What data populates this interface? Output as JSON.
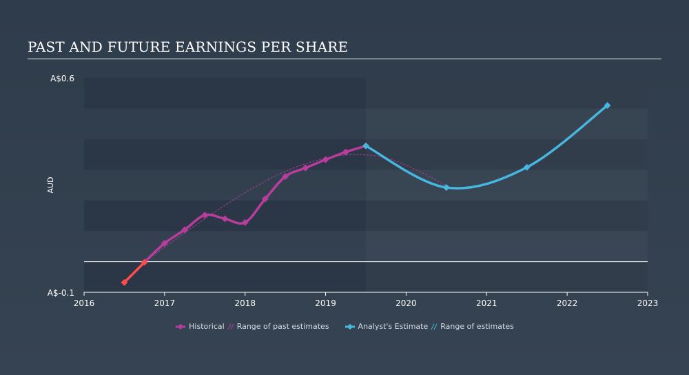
{
  "title": "PAST AND FUTURE EARNINGS PER SHARE",
  "colors": {
    "background": "#333f4e",
    "band": "#2b3746",
    "historical": "#b93d9d",
    "past_estimate_range": "#b93d9d",
    "negative_segment": "#ff4d4d",
    "analyst_estimate": "#48b7e0",
    "axis_text": "#ffffff"
  },
  "legend": {
    "historical": "Historical",
    "past_range": "Range of past estimates",
    "analyst": "Analyst's Estimate",
    "future_range": "Range of estimates"
  },
  "chart_data": {
    "type": "line",
    "ylabel": "AUD",
    "y_tick_labels": [
      "A$0.6",
      "A$-0.1"
    ],
    "y_ticks": [
      0.6,
      -0.1
    ],
    "ylim": [
      -0.1,
      0.6
    ],
    "xlim": [
      2016,
      2023
    ],
    "x_ticks": [
      "2016",
      "2017",
      "2018",
      "2019",
      "2020",
      "2021",
      "2022",
      "2023"
    ],
    "zero_line": 0,
    "series": [
      {
        "name": "Historical",
        "points": [
          [
            2016.5,
            -0.068
          ],
          [
            2016.75,
            -0.002
          ],
          [
            2017.0,
            0.06
          ],
          [
            2017.25,
            0.104
          ],
          [
            2017.5,
            0.152
          ],
          [
            2017.75,
            0.14
          ],
          [
            2018.0,
            0.128
          ],
          [
            2018.25,
            0.205
          ],
          [
            2018.5,
            0.278
          ],
          [
            2018.75,
            0.306
          ],
          [
            2019.0,
            0.333
          ],
          [
            2019.25,
            0.358
          ],
          [
            2019.5,
            0.378
          ]
        ]
      },
      {
        "name": "Range of past estimates",
        "points": [
          [
            2016.75,
            0.0
          ],
          [
            2017.5,
            0.14
          ],
          [
            2018.0,
            0.225
          ],
          [
            2018.5,
            0.295
          ],
          [
            2019.0,
            0.338
          ],
          [
            2019.4,
            0.35
          ],
          [
            2019.8,
            0.335
          ],
          [
            2020.2,
            0.29
          ],
          [
            2020.5,
            0.248
          ]
        ]
      },
      {
        "name": "Analyst's Estimate",
        "points": [
          [
            2019.5,
            0.378
          ],
          [
            2020.5,
            0.242
          ],
          [
            2021.5,
            0.308
          ],
          [
            2022.5,
            0.51
          ]
        ]
      }
    ]
  }
}
